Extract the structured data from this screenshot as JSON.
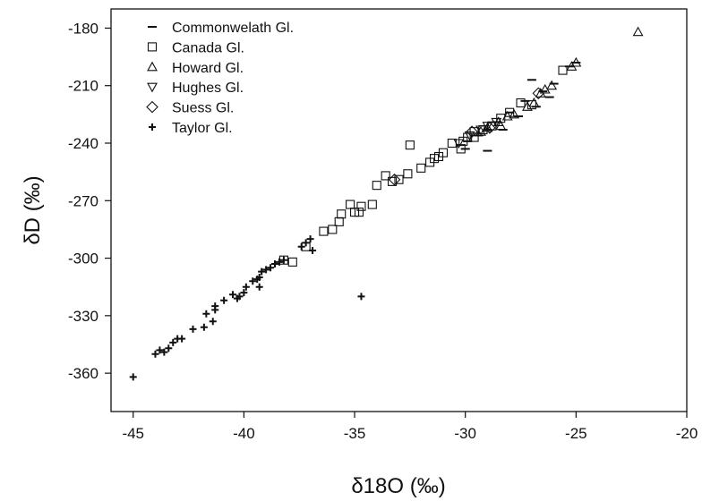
{
  "chart_data": {
    "type": "scatter",
    "xlabel": "δ18O (‰)",
    "ylabel": "δD (‰)",
    "xlim": [
      -46,
      -20
    ],
    "ylim": [
      -380,
      -170
    ],
    "x_ticks": [
      -45,
      -40,
      -35,
      -30,
      -25,
      -20
    ],
    "y_ticks": [
      -180,
      -210,
      -240,
      -270,
      -300,
      -330,
      -360
    ],
    "x_tick_labels": [
      "-45",
      "-40",
      "-35",
      "-30",
      "-25",
      "-20"
    ],
    "y_tick_labels": [
      "-180",
      "-210",
      "-240",
      "-270",
      "-300",
      "-330",
      "-360"
    ],
    "grid": false,
    "legend_position": "top-left",
    "series": [
      {
        "name": "Commonwelath Gl.",
        "marker": "dash",
        "points": [
          [
            -25.0,
            -198
          ],
          [
            -25.3,
            -200
          ],
          [
            -26.0,
            -209
          ],
          [
            -26.5,
            -213
          ],
          [
            -27.3,
            -218
          ],
          [
            -28.0,
            -224
          ],
          [
            -28.6,
            -229
          ],
          [
            -29.0,
            -233
          ],
          [
            -29.4,
            -236
          ],
          [
            -29.9,
            -239
          ],
          [
            -30.2,
            -241
          ],
          [
            -30.0,
            -243
          ],
          [
            -29.0,
            -244
          ],
          [
            -27.6,
            -226
          ],
          [
            -26.8,
            -221
          ],
          [
            -26.2,
            -216
          ],
          [
            -27.0,
            -207
          ],
          [
            -28.3,
            -233
          ]
        ]
      },
      {
        "name": "Canada Gl.",
        "marker": "square",
        "points": [
          [
            -25.6,
            -202
          ],
          [
            -27.0,
            -220
          ],
          [
            -27.5,
            -219
          ],
          [
            -28.0,
            -224
          ],
          [
            -28.4,
            -227
          ],
          [
            -28.8,
            -231
          ],
          [
            -29.2,
            -233
          ],
          [
            -29.6,
            -234
          ],
          [
            -29.9,
            -237
          ],
          [
            -30.1,
            -239
          ],
          [
            -30.2,
            -243
          ],
          [
            -30.6,
            -240
          ],
          [
            -31.0,
            -245
          ],
          [
            -31.4,
            -248
          ],
          [
            -31.6,
            -250
          ],
          [
            -32.0,
            -253
          ],
          [
            -32.5,
            -241
          ],
          [
            -32.6,
            -256
          ],
          [
            -33.3,
            -260
          ],
          [
            -33.6,
            -257
          ],
          [
            -34.0,
            -262
          ],
          [
            -34.7,
            -273
          ],
          [
            -35.0,
            -276
          ],
          [
            -35.2,
            -272
          ],
          [
            -34.8,
            -276
          ],
          [
            -34.2,
            -272
          ],
          [
            -35.7,
            -281
          ],
          [
            -36.0,
            -285
          ],
          [
            -36.4,
            -286
          ],
          [
            -37.2,
            -294
          ],
          [
            -37.8,
            -302
          ],
          [
            -38.2,
            -301
          ],
          [
            -35.6,
            -277
          ],
          [
            -33.0,
            -259
          ],
          [
            -31.2,
            -247
          ],
          [
            -29.6,
            -237
          ]
        ]
      },
      {
        "name": "Howard Gl.",
        "marker": "triangle-up",
        "points": [
          [
            -22.2,
            -182
          ],
          [
            -25.0,
            -198
          ],
          [
            -25.2,
            -200
          ],
          [
            -26.1,
            -210
          ],
          [
            -26.4,
            -212
          ],
          [
            -26.6,
            -214
          ],
          [
            -27.8,
            -225
          ],
          [
            -28.1,
            -226
          ],
          [
            -28.5,
            -229
          ],
          [
            -29.0,
            -232
          ],
          [
            -29.3,
            -234
          ],
          [
            -26.9,
            -219
          ],
          [
            -28.4,
            -231
          ],
          [
            -27.2,
            -221
          ]
        ]
      },
      {
        "name": "Hughes Gl.",
        "marker": "triangle-down",
        "points": [
          [
            -28.6,
            -229
          ],
          [
            -29.0,
            -231
          ],
          [
            -29.3,
            -233
          ],
          [
            -29.8,
            -236
          ],
          [
            -30.3,
            -240
          ]
        ]
      },
      {
        "name": "Suess Gl.",
        "marker": "diamond",
        "points": [
          [
            -33.2,
            -259
          ],
          [
            -29.7,
            -234
          ],
          [
            -26.7,
            -214
          ],
          [
            -28.9,
            -232
          ]
        ]
      },
      {
        "name": "Taylor Gl.",
        "marker": "plus",
        "points": [
          [
            -45.0,
            -362
          ],
          [
            -44.0,
            -350
          ],
          [
            -43.8,
            -348
          ],
          [
            -43.6,
            -349
          ],
          [
            -43.4,
            -347
          ],
          [
            -43.2,
            -344
          ],
          [
            -43.0,
            -342
          ],
          [
            -42.8,
            -342
          ],
          [
            -42.3,
            -337
          ],
          [
            -41.8,
            -336
          ],
          [
            -41.7,
            -329
          ],
          [
            -41.4,
            -333
          ],
          [
            -41.3,
            -327
          ],
          [
            -41.3,
            -325
          ],
          [
            -40.9,
            -322
          ],
          [
            -40.5,
            -319
          ],
          [
            -40.3,
            -321
          ],
          [
            -40.2,
            -320
          ],
          [
            -40.0,
            -318
          ],
          [
            -39.9,
            -315
          ],
          [
            -39.6,
            -312
          ],
          [
            -39.4,
            -311
          ],
          [
            -39.3,
            -310
          ],
          [
            -39.2,
            -307
          ],
          [
            -39.0,
            -306
          ],
          [
            -38.8,
            -305
          ],
          [
            -38.6,
            -303
          ],
          [
            -38.4,
            -302
          ],
          [
            -38.2,
            -301
          ],
          [
            -37.4,
            -294
          ],
          [
            -37.2,
            -292
          ],
          [
            -37.0,
            -290
          ],
          [
            -36.9,
            -296
          ],
          [
            -39.3,
            -315
          ],
          [
            -34.7,
            -320
          ]
        ]
      }
    ]
  }
}
